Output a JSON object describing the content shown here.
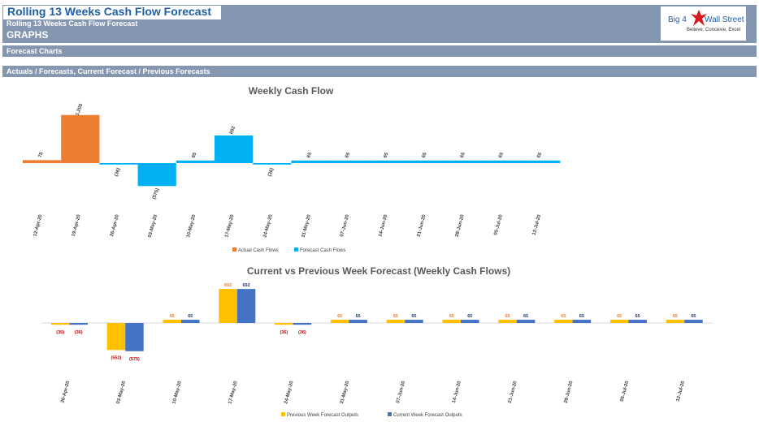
{
  "header": {
    "title": "Rolling 13 Weeks Cash Flow Forecast",
    "subtitle": "Rolling 13 Weeks Cash Flow Forecast",
    "section": "GRAPHS",
    "band1": "Forecast Charts",
    "band2": "Actuals / Forecasts, Current Forecast / Previous Forecasts"
  },
  "logo": {
    "left": "Big 4",
    "right": "Wall Street",
    "tagline": "Believe, Conceive, Excel"
  },
  "colors": {
    "band": "#8496b0",
    "orange": "#ed7d31",
    "cyan": "#00b0f0",
    "gold": "#ffc000",
    "blue": "#4472c4",
    "labelRed": "#c00000",
    "labelNavy": "#1f3864",
    "labelOrange": "#ed7d31"
  },
  "chart_data": [
    {
      "type": "bar",
      "title": "Weekly Cash Flow",
      "categories": [
        "12-Apr-20",
        "19-Apr-20",
        "26-Apr-20",
        "03-May-20",
        "10-May-20",
        "17-May-20",
        "24-May-20",
        "31-May-20",
        "07-Jun-20",
        "14-Jun-20",
        "21-Jun-20",
        "28-Jun-20",
        "05-Jul-20",
        "12-Jul-20"
      ],
      "data_labels": [
        "75",
        "1,205",
        "(36)",
        "(575)",
        "65",
        "692",
        "(36)",
        "65",
        "65",
        "65",
        "65",
        "65",
        "65",
        "65"
      ],
      "series": [
        {
          "name": "Actual Cash Flows",
          "values": [
            75,
            1205,
            null,
            null,
            null,
            null,
            null,
            null,
            null,
            null,
            null,
            null,
            null,
            null
          ]
        },
        {
          "name": "Forecast Cash Flows",
          "values": [
            null,
            null,
            -36,
            -575,
            65,
            692,
            -36,
            65,
            65,
            65,
            65,
            65,
            65,
            65
          ]
        }
      ]
    },
    {
      "type": "bar",
      "title": "Current vs Previous Week Forecast  (Weekly Cash Flows)",
      "categories": [
        "26-Apr-20",
        "03-May-20",
        "10-May-20",
        "17-May-20",
        "24-May-20",
        "31-May-20",
        "07-Jun-20",
        "14-Jun-20",
        "21-Jun-20",
        "28-Jun-20",
        "05-Jul-20",
        "12-Jul-20"
      ],
      "series": [
        {
          "name": "Previous Week Forecast Outputs",
          "values": [
            -36,
            -552,
            65,
            692,
            -36,
            65,
            65,
            65,
            65,
            65,
            65,
            65
          ],
          "labels": [
            "(36)",
            "(552)",
            "65",
            "692",
            "(36)",
            "65",
            "65",
            "65",
            "65",
            "65",
            "65",
            "65"
          ]
        },
        {
          "name": "Current Week Forecast Outputs",
          "values": [
            -36,
            -575,
            65,
            692,
            -36,
            65,
            65,
            65,
            65,
            65,
            65,
            65
          ],
          "labels": [
            "(36)",
            "(575)",
            "65",
            "692",
            "(36)",
            "65",
            "65",
            "65",
            "65",
            "65",
            "65",
            "65"
          ]
        }
      ]
    }
  ]
}
